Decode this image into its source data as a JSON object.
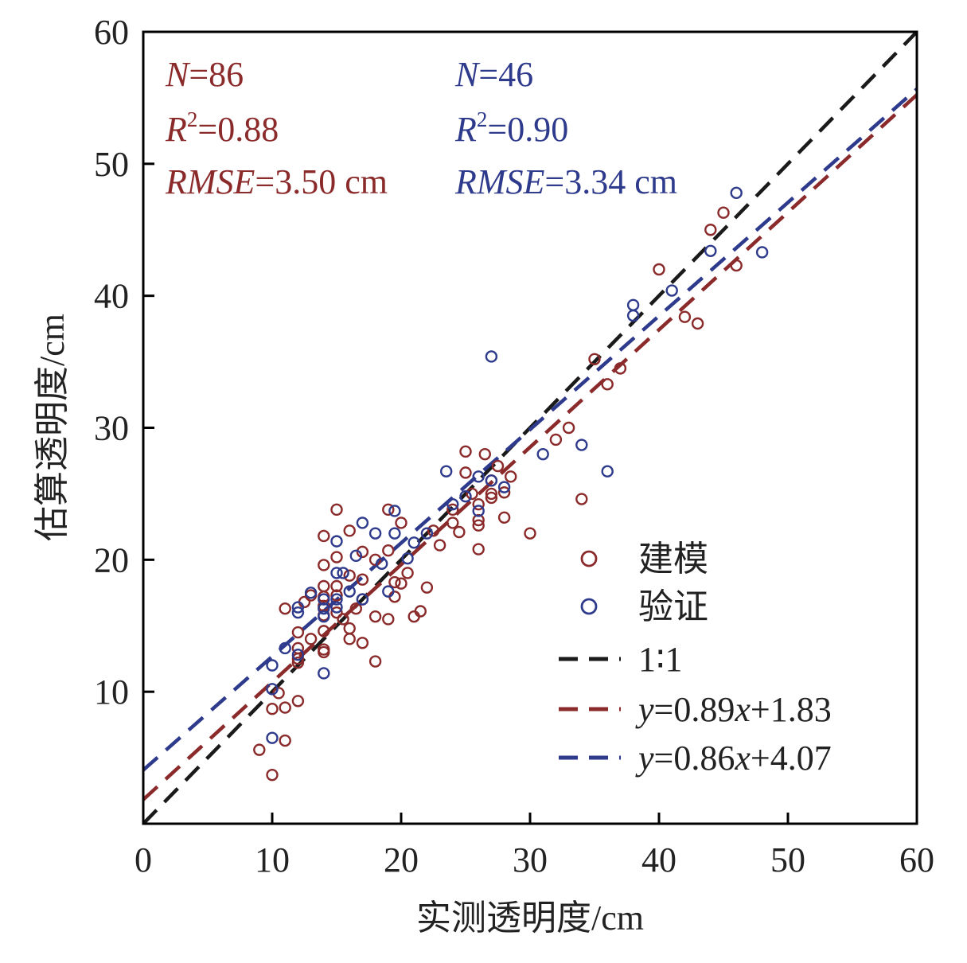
{
  "chart_data": {
    "type": "scatter",
    "xlabel": "实测透明度/cm",
    "ylabel": "估算透明度/cm",
    "xlim": [
      0,
      60
    ],
    "ylim": [
      0,
      60
    ],
    "xticks": [
      0,
      10,
      20,
      30,
      40,
      50,
      60
    ],
    "yticks": [
      10,
      20,
      30,
      40,
      50,
      60
    ],
    "grid": false,
    "legend_position": "lower-right",
    "colors": {
      "calibration": "#8B2A2A",
      "validation": "#2E3A8C",
      "one_to_one": "#1a1a1a"
    },
    "stats": {
      "calibration": {
        "N_label": "N",
        "N_value": "=86",
        "R_label": "R",
        "R_sup": "2",
        "R_value": "=0.88",
        "RMSE_label": "RMSE",
        "RMSE_value": "=3.50 cm"
      },
      "validation": {
        "N_label": "N",
        "N_value": "=46",
        "R_label": "R",
        "R_sup": "2",
        "R_value": "=0.90",
        "RMSE_label": "RMSE",
        "RMSE_value": "=3.34 cm"
      }
    },
    "legend": [
      {
        "label": "建模",
        "kind": "marker",
        "series": "calibration"
      },
      {
        "label": "验证",
        "kind": "marker",
        "series": "validation"
      },
      {
        "label": "1∶1",
        "kind": "line",
        "series": "one_to_one"
      },
      {
        "label_parts": [
          [
            "y",
            true
          ],
          [
            "=0.89",
            false
          ],
          [
            "x",
            true
          ],
          [
            "+1.83",
            false
          ]
        ],
        "kind": "line",
        "series": "calibration"
      },
      {
        "label_parts": [
          [
            "y",
            true
          ],
          [
            "=0.86",
            false
          ],
          [
            "x",
            true
          ],
          [
            "+4.07",
            false
          ]
        ],
        "kind": "line",
        "series": "validation"
      }
    ],
    "lines": [
      {
        "name": "1:1",
        "series": "one_to_one",
        "slope": 1.0,
        "intercept": 0.0
      },
      {
        "name": "y=0.89x+1.83",
        "series": "calibration",
        "slope": 0.89,
        "intercept": 1.83
      },
      {
        "name": "y=0.86x+4.07",
        "series": "validation",
        "slope": 0.86,
        "intercept": 4.07
      }
    ],
    "series": [
      {
        "name": "建模",
        "key": "calibration",
        "points": [
          [
            9,
            5.6
          ],
          [
            10,
            3.7
          ],
          [
            10,
            8.7
          ],
          [
            11,
            8.8
          ],
          [
            11,
            6.3
          ],
          [
            12,
            9.3
          ],
          [
            12,
            12.2
          ],
          [
            12,
            12.5
          ],
          [
            12,
            13.3
          ],
          [
            12,
            14.5
          ],
          [
            11,
            16.3
          ],
          [
            12.5,
            16.8
          ],
          [
            13,
            14.0
          ],
          [
            14,
            13.2
          ],
          [
            14,
            13.0
          ],
          [
            14,
            14.6
          ],
          [
            14,
            15.8
          ],
          [
            14,
            16.5
          ],
          [
            14,
            17.2
          ],
          [
            14,
            18.0
          ],
          [
            14,
            19.6
          ],
          [
            14,
            21.8
          ],
          [
            15,
            23.8
          ],
          [
            15,
            20.2
          ],
          [
            15,
            18.0
          ],
          [
            15,
            17.3
          ],
          [
            15,
            16.0
          ],
          [
            15.5,
            15.5
          ],
          [
            16,
            14.0
          ],
          [
            16,
            14.8
          ],
          [
            16,
            22.2
          ],
          [
            16.5,
            16.3
          ],
          [
            17,
            13.7
          ],
          [
            17,
            17.0
          ],
          [
            17,
            18.5
          ],
          [
            17,
            20.6
          ],
          [
            18,
            12.3
          ],
          [
            18,
            15.7
          ],
          [
            19,
            15.5
          ],
          [
            19,
            20.7
          ],
          [
            19,
            23.8
          ],
          [
            19.5,
            17.2
          ],
          [
            19.5,
            18.3
          ],
          [
            20,
            18.2
          ],
          [
            20,
            22.8
          ],
          [
            21,
            15.7
          ],
          [
            21.5,
            16.1
          ],
          [
            22,
            17.9
          ],
          [
            23,
            21.1
          ],
          [
            24,
            22.8
          ],
          [
            24,
            23.8
          ],
          [
            24.5,
            22.1
          ],
          [
            25,
            28.2
          ],
          [
            25.5,
            25.0
          ],
          [
            26,
            20.8
          ],
          [
            26,
            22.6
          ],
          [
            26,
            23.0
          ],
          [
            26,
            24.2
          ],
          [
            26.5,
            28.0
          ],
          [
            27,
            25.0
          ],
          [
            27,
            26.0
          ],
          [
            27,
            24.7
          ],
          [
            28,
            23.2
          ],
          [
            28,
            25.1
          ],
          [
            28.5,
            26.3
          ],
          [
            30,
            22.0
          ],
          [
            32,
            29.1
          ],
          [
            33,
            30.0
          ],
          [
            34,
            24.6
          ],
          [
            35,
            35.2
          ],
          [
            36,
            33.3
          ],
          [
            37,
            34.5
          ],
          [
            40,
            42.0
          ],
          [
            42,
            38.4
          ],
          [
            43,
            37.9
          ],
          [
            44,
            45.0
          ],
          [
            45,
            46.3
          ],
          [
            46,
            42.3
          ],
          [
            10.5,
            9.9
          ],
          [
            13,
            17.3
          ],
          [
            16,
            18.8
          ],
          [
            18,
            20.0
          ],
          [
            20.5,
            19.0
          ],
          [
            22.5,
            22.2
          ],
          [
            25,
            26.6
          ],
          [
            27.5,
            27.1
          ]
        ]
      },
      {
        "name": "验证",
        "key": "validation",
        "points": [
          [
            10,
            12.0
          ],
          [
            10,
            10.2
          ],
          [
            10,
            6.5
          ],
          [
            11,
            13.3
          ],
          [
            12,
            16.0
          ],
          [
            12,
            16.4
          ],
          [
            13,
            17.5
          ],
          [
            14,
            11.4
          ],
          [
            14,
            15.7
          ],
          [
            14,
            16.3
          ],
          [
            14,
            17.0
          ],
          [
            15,
            16.4
          ],
          [
            15,
            17.0
          ],
          [
            15,
            19.0
          ],
          [
            15,
            21.4
          ],
          [
            15.5,
            19.0
          ],
          [
            16,
            17.6
          ],
          [
            17,
            17.0
          ],
          [
            17,
            22.8
          ],
          [
            18,
            22.0
          ],
          [
            18.5,
            19.7
          ],
          [
            19,
            17.6
          ],
          [
            19.5,
            22.0
          ],
          [
            19.5,
            23.7
          ],
          [
            20.5,
            20.1
          ],
          [
            22,
            22.0
          ],
          [
            23.5,
            26.7
          ],
          [
            25,
            24.8
          ],
          [
            26,
            26.3
          ],
          [
            26,
            23.7
          ],
          [
            27,
            26.0
          ],
          [
            27,
            35.4
          ],
          [
            28,
            25.5
          ],
          [
            31,
            28.0
          ],
          [
            34,
            28.7
          ],
          [
            36,
            26.7
          ],
          [
            38,
            39.3
          ],
          [
            38,
            38.5
          ],
          [
            41,
            40.4
          ],
          [
            44,
            43.4
          ],
          [
            46,
            47.8
          ],
          [
            48,
            43.3
          ],
          [
            12,
            12.8
          ],
          [
            16.5,
            20.3
          ],
          [
            21,
            21.3
          ],
          [
            24,
            24.2
          ]
        ]
      }
    ]
  }
}
